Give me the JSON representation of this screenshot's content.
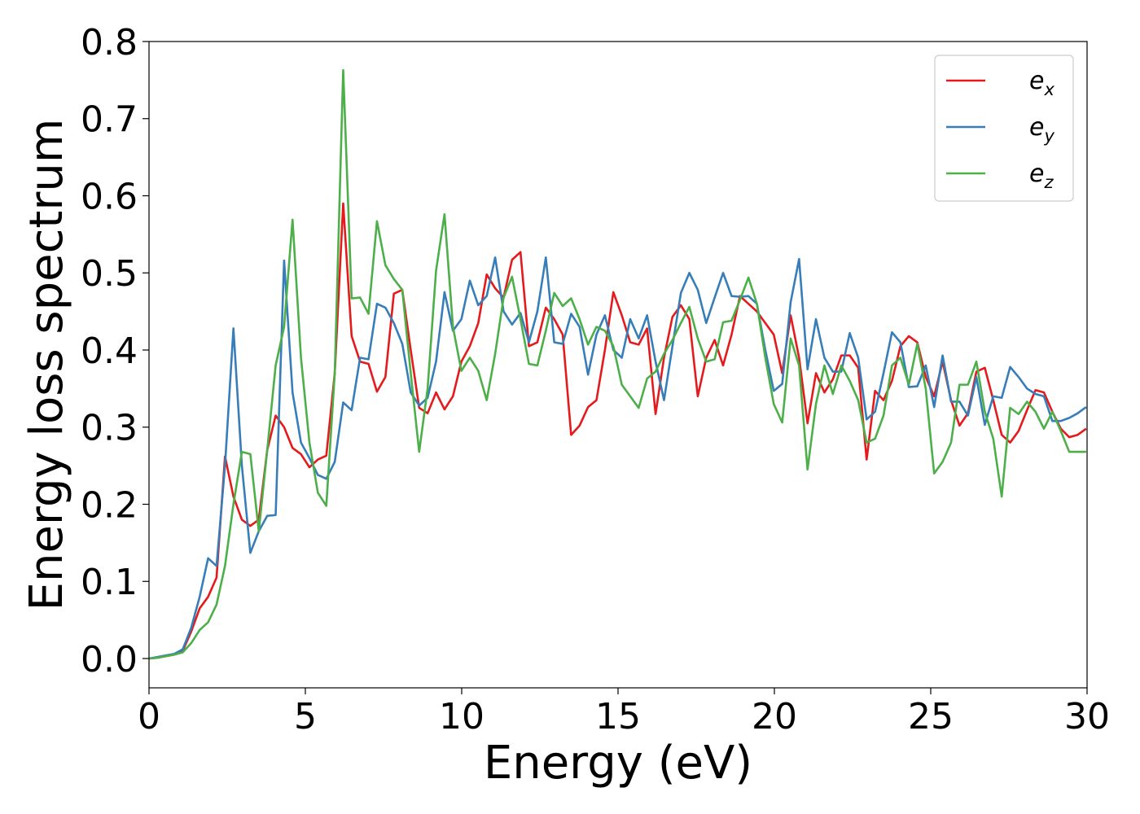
{
  "chart_data": {
    "type": "line",
    "x_label": "Energy (eV)",
    "y_label": "Energy loss spectrum",
    "xlim": [
      0,
      30
    ],
    "ylim": [
      -0.038,
      0.8
    ],
    "xticks": [
      0,
      5,
      10,
      15,
      20,
      25,
      30
    ],
    "yticks": [
      {
        "value": 0,
        "label": "0.0"
      },
      0.1,
      0.2,
      0.3,
      0.4,
      0.5,
      0.6,
      0.7,
      0.8
    ],
    "grid": false,
    "legend": "upper right",
    "x": [
      0,
      0.27,
      0.54,
      0.81,
      1.08,
      1.35,
      1.62,
      1.89,
      2.16,
      2.43,
      2.7,
      2.97,
      3.24,
      3.51,
      3.78,
      4.05,
      4.32,
      4.59,
      4.86,
      5.13,
      5.4,
      5.67,
      5.94,
      6.21,
      6.48,
      6.75,
      7.02,
      7.29,
      7.56,
      7.83,
      8.1,
      8.37,
      8.64,
      8.91,
      9.18,
      9.45,
      9.72,
      9.99,
      10.26,
      10.53,
      10.8,
      11.07,
      11.34,
      11.61,
      11.88,
      12.15,
      12.42,
      12.69,
      12.96,
      13.23,
      13.5,
      13.77,
      14.04,
      14.31,
      14.58,
      14.85,
      15.12,
      15.39,
      15.66,
      15.93,
      16.2,
      16.47,
      16.74,
      17.01,
      17.28,
      17.55,
      17.82,
      18.09,
      18.36,
      18.63,
      18.9,
      19.17,
      19.44,
      19.71,
      19.98,
      20.25,
      20.52,
      20.79,
      21.06,
      21.33,
      21.6,
      21.87,
      22.14,
      22.41,
      22.68,
      22.95,
      23.22,
      23.49,
      23.76,
      24.03,
      24.3,
      24.57,
      24.84,
      25.11,
      25.38,
      25.65,
      25.92,
      26.19,
      26.46,
      26.73,
      27.0,
      27.27,
      27.54,
      27.81,
      28.08,
      28.35,
      28.62,
      28.89,
      29.16,
      29.43,
      29.7,
      29.97
    ],
    "series": [
      {
        "name": "e_x",
        "color": "#e41a1c",
        "values": [
          0,
          0.001,
          0.003,
          0.005,
          0.01,
          0.035,
          0.065,
          0.08,
          0.105,
          0.262,
          0.21,
          0.18,
          0.172,
          0.18,
          0.27,
          0.315,
          0.3,
          0.273,
          0.265,
          0.248,
          0.258,
          0.263,
          0.37,
          0.59,
          0.418,
          0.385,
          0.382,
          0.346,
          0.365,
          0.473,
          0.478,
          0.4,
          0.325,
          0.318,
          0.345,
          0.323,
          0.34,
          0.385,
          0.405,
          0.435,
          0.498,
          0.48,
          0.468,
          0.517,
          0.527,
          0.405,
          0.41,
          0.455,
          0.44,
          0.42,
          0.29,
          0.302,
          0.326,
          0.335,
          0.4,
          0.475,
          0.445,
          0.41,
          0.407,
          0.428,
          0.317,
          0.39,
          0.443,
          0.458,
          0.44,
          0.34,
          0.39,
          0.413,
          0.38,
          0.42,
          0.47,
          0.46,
          0.45,
          0.435,
          0.42,
          0.37,
          0.445,
          0.39,
          0.305,
          0.37,
          0.345,
          0.362,
          0.393,
          0.393,
          0.377,
          0.258,
          0.347,
          0.335,
          0.36,
          0.405,
          0.418,
          0.41,
          0.365,
          0.34,
          0.385,
          0.335,
          0.302,
          0.318,
          0.372,
          0.377,
          0.335,
          0.29,
          0.28,
          0.295,
          0.322,
          0.348,
          0.345,
          0.32,
          0.298,
          0.287,
          0.29,
          0.298
        ]
      },
      {
        "name": "e_y",
        "color": "#377eb8",
        "values": [
          0,
          0.002,
          0.004,
          0.006,
          0.012,
          0.04,
          0.08,
          0.13,
          0.12,
          0.25,
          0.428,
          0.25,
          0.137,
          0.165,
          0.185,
          0.186,
          0.516,
          0.345,
          0.28,
          0.26,
          0.238,
          0.233,
          0.255,
          0.332,
          0.322,
          0.39,
          0.388,
          0.46,
          0.455,
          0.435,
          0.408,
          0.345,
          0.328,
          0.338,
          0.385,
          0.475,
          0.425,
          0.44,
          0.49,
          0.458,
          0.47,
          0.52,
          0.45,
          0.433,
          0.448,
          0.41,
          0.45,
          0.52,
          0.41,
          0.408,
          0.447,
          0.43,
          0.368,
          0.42,
          0.445,
          0.4,
          0.39,
          0.44,
          0.415,
          0.445,
          0.385,
          0.335,
          0.405,
          0.474,
          0.5,
          0.478,
          0.435,
          0.468,
          0.5,
          0.47,
          0.469,
          0.47,
          0.46,
          0.4,
          0.347,
          0.356,
          0.462,
          0.518,
          0.375,
          0.44,
          0.39,
          0.372,
          0.372,
          0.422,
          0.39,
          0.31,
          0.32,
          0.37,
          0.423,
          0.41,
          0.352,
          0.353,
          0.38,
          0.326,
          0.393,
          0.333,
          0.333,
          0.315,
          0.365,
          0.303,
          0.34,
          0.338,
          0.378,
          0.365,
          0.35,
          0.343,
          0.34,
          0.308,
          0.308,
          0.312,
          0.318,
          0.326
        ]
      },
      {
        "name": "e_z",
        "color": "#4daf4a",
        "values": [
          0,
          0.001,
          0.003,
          0.005,
          0.008,
          0.02,
          0.037,
          0.047,
          0.07,
          0.12,
          0.2,
          0.268,
          0.265,
          0.165,
          0.27,
          0.38,
          0.43,
          0.569,
          0.39,
          0.28,
          0.215,
          0.198,
          0.37,
          0.763,
          0.467,
          0.468,
          0.447,
          0.567,
          0.51,
          0.492,
          0.478,
          0.37,
          0.268,
          0.35,
          0.503,
          0.576,
          0.43,
          0.373,
          0.39,
          0.373,
          0.335,
          0.395,
          0.468,
          0.495,
          0.44,
          0.382,
          0.38,
          0.425,
          0.474,
          0.457,
          0.467,
          0.44,
          0.407,
          0.43,
          0.425,
          0.405,
          0.355,
          0.34,
          0.325,
          0.363,
          0.372,
          0.395,
          0.413,
          0.435,
          0.456,
          0.415,
          0.385,
          0.388,
          0.436,
          0.438,
          0.465,
          0.494,
          0.46,
          0.39,
          0.33,
          0.306,
          0.415,
          0.38,
          0.245,
          0.33,
          0.38,
          0.343,
          0.38,
          0.36,
          0.335,
          0.28,
          0.285,
          0.315,
          0.38,
          0.39,
          0.355,
          0.408,
          0.35,
          0.24,
          0.255,
          0.28,
          0.355,
          0.355,
          0.385,
          0.32,
          0.285,
          0.21,
          0.325,
          0.317,
          0.333,
          0.32,
          0.298,
          0.32,
          0.295,
          0.268,
          0.268,
          0.268
        ]
      }
    ]
  }
}
